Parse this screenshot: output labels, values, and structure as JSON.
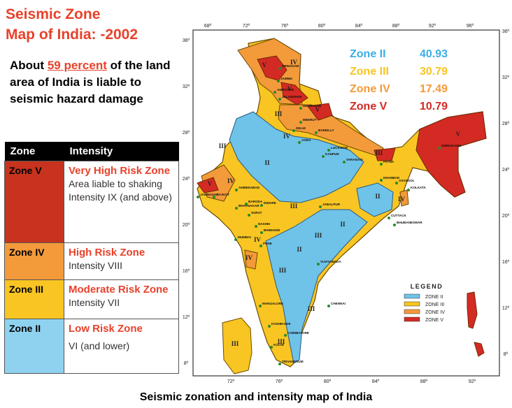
{
  "title": {
    "line1": "Seismic Zone",
    "line2": "Map of India: -2002"
  },
  "about": {
    "pre": "About ",
    "percent": "59 percent",
    "post": " of the land area of India is liable to seismic hazard damage"
  },
  "table": {
    "headers": [
      "Zone",
      "Intensity"
    ],
    "rows": [
      {
        "zone": "Zone V",
        "risk": "Very High Risk Zone",
        "desc": " Area liable to shaking Intensity IX (and above)",
        "color": "#c7331e"
      },
      {
        "zone": "Zone IV",
        "risk": "High Risk  Zone",
        "desc": "Intensity VIII",
        "color": "#f39a3b"
      },
      {
        "zone": "Zone III",
        "risk": "Moderate Risk Zone",
        "desc": " Intensity VII",
        "color": "#f8c522"
      },
      {
        "zone": "Zone II",
        "risk": "Low Risk Zone",
        "desc": "VI (and lower)",
        "color": "#8fd2f0"
      }
    ]
  },
  "stats": [
    {
      "label": "Zone II",
      "value": "40.93",
      "color": "#3aaee6"
    },
    {
      "label": "Zone III",
      "value": "30.79",
      "color": "#f8c522"
    },
    {
      "label": "Zone IV",
      "value": "17.49",
      "color": "#f39a3b"
    },
    {
      "label": "Zone V",
      "value": "10.79",
      "color": "#d42a24"
    }
  ],
  "legend": {
    "title": "LEGEND",
    "items": [
      {
        "label": "ZONE II",
        "color": "#6fc2e8"
      },
      {
        "label": "ZONE III",
        "color": "#f8c522"
      },
      {
        "label": "ZONE IV",
        "color": "#f39a3b"
      },
      {
        "label": "ZONE V",
        "color": "#d42a24"
      }
    ]
  },
  "map": {
    "top_ticks": [
      "68º",
      "72º",
      "76º",
      "80º",
      "84º",
      "88º",
      "92º",
      "96º"
    ],
    "bottom_ticks": [
      "72º",
      "76º",
      "80º",
      "84º",
      "88º",
      "92º"
    ],
    "left_ticks": [
      "36º",
      "32º",
      "28º",
      "24º",
      "20º",
      "16º",
      "12º",
      "8º"
    ],
    "right_ticks": [
      "36º",
      "32º",
      "28º",
      "24º",
      "20º",
      "16º",
      "12º",
      "8º"
    ],
    "zone_labels": [
      "IV",
      "V",
      "V",
      "III",
      "IV",
      "III",
      "IV",
      "II",
      "III",
      "IV",
      "V",
      "II",
      "III",
      "IV",
      "III",
      "II",
      "II",
      "IV",
      "III",
      "III",
      "III",
      "III",
      "V",
      "V"
    ],
    "cities": [
      "SRINAGAR",
      "JAMMU",
      "AMRITSAR",
      "JALANDHAR",
      "DEHRADUN",
      "MEERUT",
      "DELHI",
      "BAREILLY",
      "AGRA",
      "LUCKNOW",
      "KANPUR",
      "VARANASI",
      "PATNA",
      "DIBRUGARH",
      "JAMNAGAR",
      "RAJKOT",
      "AHMEDABAD",
      "BARODA",
      "BHAVNAGAR",
      "SURAT",
      "INDORE",
      "JABALPUR",
      "DHANBAD",
      "ASANSOL",
      "KOLKATA",
      "CUTTACK",
      "BHUBANESWAR",
      "NASHIK",
      "BHIWANDI",
      "MUMBAI",
      "PUNE",
      "VIJAYAWADA",
      "MANGALORE",
      "CHENNAI",
      "KOZHIKODE",
      "COIMBATORE",
      "KOCHI",
      "TRIVANDRUM"
    ]
  },
  "caption": "Seismic zonation and intensity map of India"
}
